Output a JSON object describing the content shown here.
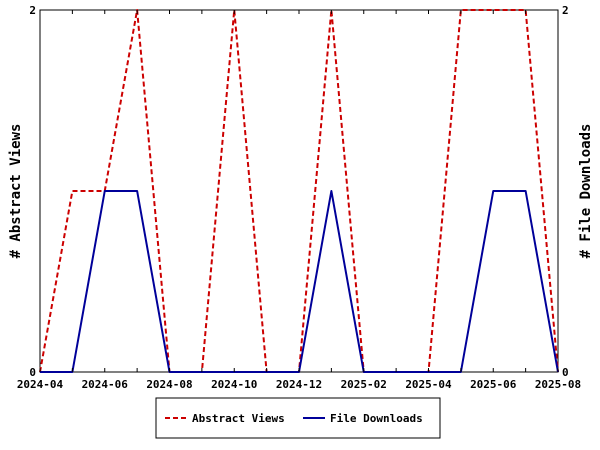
{
  "chart_data": {
    "type": "line",
    "x": [
      "2024-04",
      "2024-05",
      "2024-06",
      "2024-07",
      "2024-08",
      "2024-09",
      "2024-10",
      "2024-11",
      "2024-12",
      "2025-01",
      "2025-02",
      "2025-03",
      "2025-04",
      "2025-05",
      "2025-06",
      "2025-07",
      "2025-08"
    ],
    "x_tick_labels": [
      "2024-04",
      "2024-06",
      "2024-08",
      "2024-10",
      "2024-12",
      "2025-02",
      "2025-04",
      "2025-06",
      "2025-08"
    ],
    "y_left_ticks": [
      "0",
      "2"
    ],
    "y_right_ticks": [
      "0",
      "2"
    ],
    "ylabel_left": "# Abstract Views",
    "ylabel_right": "# File Downloads",
    "ylim_left": [
      0,
      2
    ],
    "ylim_right": [
      0,
      2
    ],
    "legend_position": "bottom-center",
    "grid": false,
    "series": [
      {
        "name": "Abstract Views",
        "axis": "left",
        "color": "#cc0000",
        "style": "dashed",
        "values": [
          0,
          1,
          1,
          2,
          0,
          0,
          2,
          0,
          0,
          2,
          0,
          0,
          0,
          2,
          2,
          2,
          0
        ]
      },
      {
        "name": "File Downloads",
        "axis": "right",
        "color": "#000099",
        "style": "solid",
        "values": [
          0,
          0,
          1,
          1,
          0,
          0,
          0,
          0,
          0,
          1,
          0,
          0,
          0,
          0,
          1,
          1,
          0
        ]
      }
    ]
  }
}
